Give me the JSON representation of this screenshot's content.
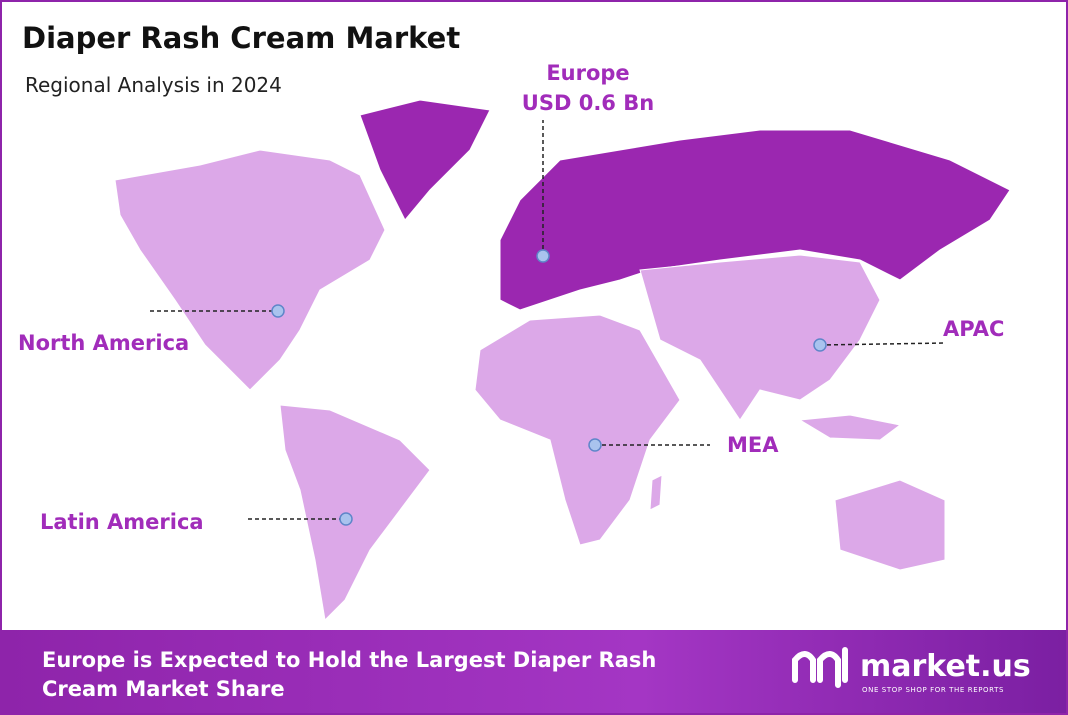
{
  "header": {
    "title": "Diaper Rash Cream Market",
    "subtitle": "Regional Analysis in 2024"
  },
  "regions": [
    {
      "label": "Europe",
      "value_label": "USD 0.6 Bn"
    },
    {
      "label": "North America"
    },
    {
      "label": "APAC"
    },
    {
      "label": "MEA"
    },
    {
      "label": "Latin America"
    }
  ],
  "footer": {
    "text_lines": [
      "Europe is Expected to Hold the Largest Diaper Rash",
      "Cream Market Share"
    ]
  },
  "logo": {
    "name": "market.us",
    "tagline": "ONE STOP SHOP FOR THE REPORTS"
  }
}
